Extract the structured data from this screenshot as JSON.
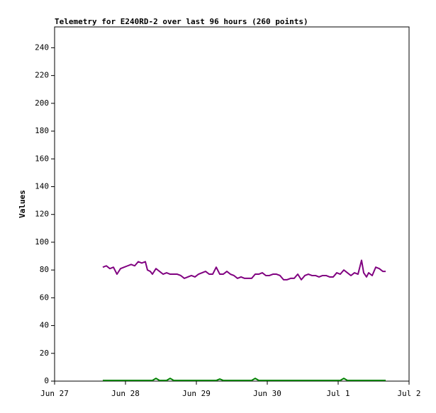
{
  "chart_data": {
    "type": "line",
    "title": "Telemetry for E240RD-2 over last 96 hours (260 points)",
    "ylabel": "Values",
    "x": [
      0.68,
      0.73,
      0.78,
      0.83,
      0.88,
      0.93,
      0.98,
      1.03,
      1.08,
      1.13,
      1.18,
      1.23,
      1.28,
      1.31,
      1.35,
      1.38,
      1.43,
      1.48,
      1.53,
      1.58,
      1.63,
      1.68,
      1.73,
      1.78,
      1.83,
      1.88,
      1.93,
      1.98,
      2.03,
      2.08,
      2.13,
      2.18,
      2.23,
      2.28,
      2.33,
      2.38,
      2.43,
      2.48,
      2.53,
      2.58,
      2.63,
      2.68,
      2.73,
      2.78,
      2.83,
      2.88,
      2.93,
      2.98,
      3.03,
      3.08,
      3.13,
      3.18,
      3.23,
      3.28,
      3.33,
      3.38,
      3.43,
      3.48,
      3.53,
      3.58,
      3.63,
      3.68,
      3.73,
      3.78,
      3.83,
      3.88,
      3.93,
      3.98,
      4.03,
      4.08,
      4.13,
      4.18,
      4.23,
      4.28,
      4.33,
      4.36,
      4.4,
      4.43,
      4.48,
      4.53,
      4.58,
      4.63,
      4.67
    ],
    "series": [
      {
        "color": "#800080",
        "values": [
          82,
          83,
          81,
          82,
          77,
          81,
          82,
          83,
          84,
          83,
          86,
          85,
          86,
          80,
          79,
          77,
          81,
          79,
          77,
          78,
          77,
          77,
          77,
          76,
          74,
          75,
          76,
          75,
          77,
          78,
          79,
          77,
          77,
          82,
          77,
          77,
          79,
          77,
          76,
          74,
          75,
          74,
          74,
          74,
          77,
          77,
          78,
          76,
          76,
          77,
          77,
          76,
          73,
          73,
          74,
          74,
          77,
          73,
          76,
          77,
          76,
          76,
          75,
          76,
          76,
          75,
          75,
          78,
          77,
          80,
          78,
          76,
          78,
          77,
          87,
          78,
          75,
          78,
          76,
          82,
          81,
          79,
          79
        ]
      },
      {
        "color": "#008000",
        "values": [
          0.5,
          0.5,
          0.5,
          0.5,
          0.5,
          0.5,
          0.5,
          0.5,
          0.5,
          0.5,
          0.5,
          0.5,
          0.5,
          0.5,
          0.5,
          0.5,
          2,
          0.5,
          0.5,
          0.5,
          2,
          0.5,
          0.5,
          0.5,
          0.5,
          0.5,
          0.5,
          0.5,
          0.5,
          0.5,
          0.5,
          0.5,
          0.5,
          0.5,
          1.5,
          0.5,
          0.5,
          0.5,
          0.5,
          0.5,
          0.5,
          0.5,
          0.5,
          0.5,
          2,
          0.5,
          0.5,
          0.5,
          0.5,
          0.5,
          0.5,
          0.5,
          0.5,
          0.5,
          0.5,
          0.5,
          0.5,
          0.5,
          0.5,
          0.5,
          0.5,
          0.5,
          0.5,
          0.5,
          0.5,
          0.5,
          0.5,
          0.5,
          0.5,
          2,
          0.5,
          0.5,
          0.5,
          0.5,
          0.5,
          0.5,
          0.5,
          0.5,
          0.5,
          0.5,
          0.5,
          0.5,
          0.5
        ]
      }
    ],
    "xlim": [
      0,
      5
    ],
    "xticks": [
      {
        "value": 0,
        "label": "Jun 27"
      },
      {
        "value": 1,
        "label": "Jun 28"
      },
      {
        "value": 2,
        "label": "Jun 29"
      },
      {
        "value": 3,
        "label": "Jun 30"
      },
      {
        "value": 4,
        "label": "Jul 1"
      },
      {
        "value": 5,
        "label": "Jul 2"
      }
    ],
    "ylim": [
      0,
      255
    ],
    "yticks": [
      0,
      20,
      40,
      60,
      80,
      100,
      120,
      140,
      160,
      180,
      200,
      220,
      240
    ],
    "grid": false
  }
}
